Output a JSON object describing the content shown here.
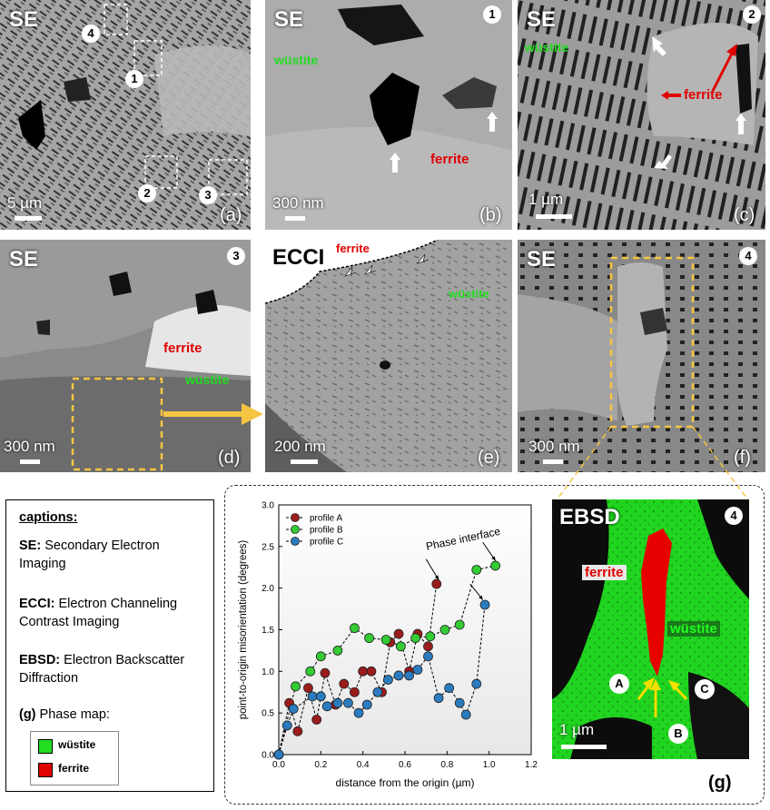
{
  "panels": {
    "a": {
      "mode": "SE",
      "letter": "(a)",
      "scale": "5 µm",
      "markers": [
        "4",
        "1",
        "2",
        "3"
      ]
    },
    "b": {
      "mode": "SE",
      "letter": "(b)",
      "scale": "300 nm",
      "badge": "1",
      "phases": [
        "wüstite",
        "ferrite"
      ]
    },
    "c": {
      "mode": "SE",
      "letter": "(c)",
      "scale": "1 µm",
      "badge": "2",
      "phases": [
        "wüstite",
        "ferrite"
      ]
    },
    "d": {
      "mode": "SE",
      "letter": "(d)",
      "scale": "300 nm",
      "badge": "3",
      "phases": [
        "ferrite",
        "wüstite"
      ]
    },
    "e": {
      "mode": "ECCI",
      "letter": "(e)",
      "scale": "200 nm",
      "phases": [
        "ferrite",
        "wüstite"
      ]
    },
    "f": {
      "mode": "SE",
      "letter": "(f)",
      "scale": "300 nm",
      "badge": "4"
    },
    "g": {
      "mode": "EBSD",
      "letter": "(g)",
      "scale": "1 µm",
      "badge": "4",
      "phases": [
        "ferrite",
        "wüstite"
      ],
      "points": [
        "A",
        "B",
        "C"
      ]
    }
  },
  "captions": {
    "title": "captions:",
    "se_key": "SE:",
    "se_text": "Secondary Electron Imaging",
    "ecci_key": "ECCI:",
    "ecci_text": "Electron Channeling Contrast Imaging",
    "ebsd_key": "EBSD:",
    "ebsd_text": "Electron Backscatter Diffraction",
    "phase_key": "(g)",
    "phase_text": "Phase map:",
    "legend": [
      {
        "label": "wüstite",
        "color": "#22dd22"
      },
      {
        "label": "ferrite",
        "color": "#e00000"
      }
    ]
  },
  "colors": {
    "ferrite": "#e00000",
    "wustite": "#22dd22",
    "arrow_yellow": "#f5c542",
    "profile_A": "#9b1c1c",
    "profile_B": "#33cc33",
    "profile_C": "#2b7bbf"
  },
  "chart_data": {
    "type": "line",
    "xlabel": "distance from the origin (µm)",
    "ylabel": "point-to-origin misorientation (degrees)",
    "xlim": [
      0,
      1.2
    ],
    "ylim": [
      0,
      3.0
    ],
    "xticks": [
      "0.0",
      "0.2",
      "0.4",
      "0.6",
      "0.8",
      "1.0",
      "1.2"
    ],
    "yticks": [
      "0.0",
      "0.5",
      "1.0",
      "1.5",
      "2.0",
      "2.5",
      "3.0"
    ],
    "annotation": "Phase interface",
    "series": [
      {
        "name": "profile A",
        "color": "#9b1c1c",
        "points": [
          [
            0,
            0
          ],
          [
            0.05,
            0.62
          ],
          [
            0.09,
            0.28
          ],
          [
            0.14,
            0.8
          ],
          [
            0.18,
            0.42
          ],
          [
            0.22,
            0.98
          ],
          [
            0.27,
            0.6
          ],
          [
            0.31,
            0.85
          ],
          [
            0.36,
            0.75
          ],
          [
            0.4,
            1.0
          ],
          [
            0.44,
            1.0
          ],
          [
            0.49,
            0.75
          ],
          [
            0.53,
            1.35
          ],
          [
            0.57,
            1.45
          ],
          [
            0.62,
            1.0
          ],
          [
            0.66,
            1.45
          ],
          [
            0.71,
            1.3
          ],
          [
            0.75,
            2.05
          ]
        ]
      },
      {
        "name": "profile B",
        "color": "#33cc33",
        "points": [
          [
            0,
            0
          ],
          [
            0.08,
            0.82
          ],
          [
            0.15,
            1.0
          ],
          [
            0.2,
            1.18
          ],
          [
            0.28,
            1.25
          ],
          [
            0.36,
            1.52
          ],
          [
            0.43,
            1.4
          ],
          [
            0.51,
            1.38
          ],
          [
            0.58,
            1.3
          ],
          [
            0.65,
            1.4
          ],
          [
            0.72,
            1.42
          ],
          [
            0.79,
            1.5
          ],
          [
            0.86,
            1.56
          ],
          [
            0.94,
            2.22
          ],
          [
            1.03,
            2.27
          ]
        ]
      },
      {
        "name": "profile C",
        "color": "#2b7bbf",
        "points": [
          [
            0,
            0
          ],
          [
            0.04,
            0.35
          ],
          [
            0.07,
            0.55
          ],
          [
            0.16,
            0.7
          ],
          [
            0.2,
            0.7
          ],
          [
            0.23,
            0.58
          ],
          [
            0.28,
            0.62
          ],
          [
            0.33,
            0.62
          ],
          [
            0.38,
            0.5
          ],
          [
            0.42,
            0.6
          ],
          [
            0.47,
            0.75
          ],
          [
            0.52,
            0.9
          ],
          [
            0.57,
            0.95
          ],
          [
            0.62,
            0.95
          ],
          [
            0.66,
            1.02
          ],
          [
            0.71,
            1.18
          ],
          [
            0.76,
            0.68
          ],
          [
            0.81,
            0.8
          ],
          [
            0.86,
            0.62
          ],
          [
            0.89,
            0.48
          ],
          [
            0.94,
            0.85
          ],
          [
            0.98,
            1.8
          ]
        ]
      }
    ]
  }
}
